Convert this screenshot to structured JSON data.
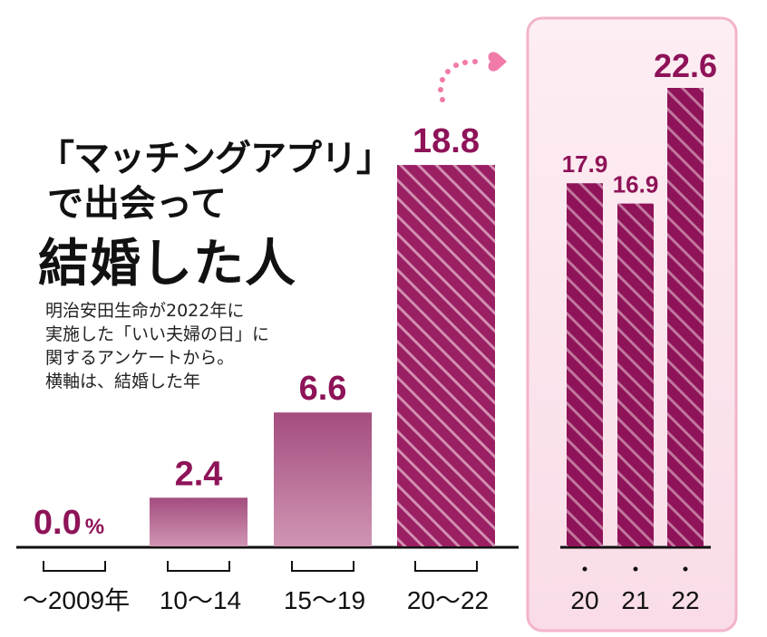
{
  "title": {
    "line1": "「マッチングアプリ」",
    "line2": "で出会って",
    "line3": "結婚した人"
  },
  "note": [
    "明治安田生命が2022年に",
    "実施した「いい夫婦の日」に",
    "関するアンケートから。",
    "横軸は、結婚した年"
  ],
  "colors": {
    "bar_light": "#b46a92",
    "bar_dark": "#8e1358",
    "value_text": "#8e1358",
    "panel_bg": "#fbe8ef",
    "panel_border": "#f3b3cb",
    "heart": "#f07aa8"
  },
  "chart_data": [
    {
      "type": "bar",
      "categories": [
        "〜2009年",
        "10〜14",
        "15〜19",
        "20〜22"
      ],
      "values": [
        0.0,
        2.4,
        6.6,
        18.8
      ],
      "value_labels": [
        "0.0",
        "2.4",
        "6.6",
        "18.8"
      ],
      "unit": "%",
      "ylim": [
        0,
        22.6
      ]
    },
    {
      "type": "bar",
      "categories": [
        "20",
        "21",
        "22"
      ],
      "values": [
        17.9,
        16.9,
        22.6
      ],
      "value_labels": [
        "17.9",
        "16.9",
        "22.6"
      ],
      "ylim": [
        0,
        22.6
      ]
    }
  ]
}
